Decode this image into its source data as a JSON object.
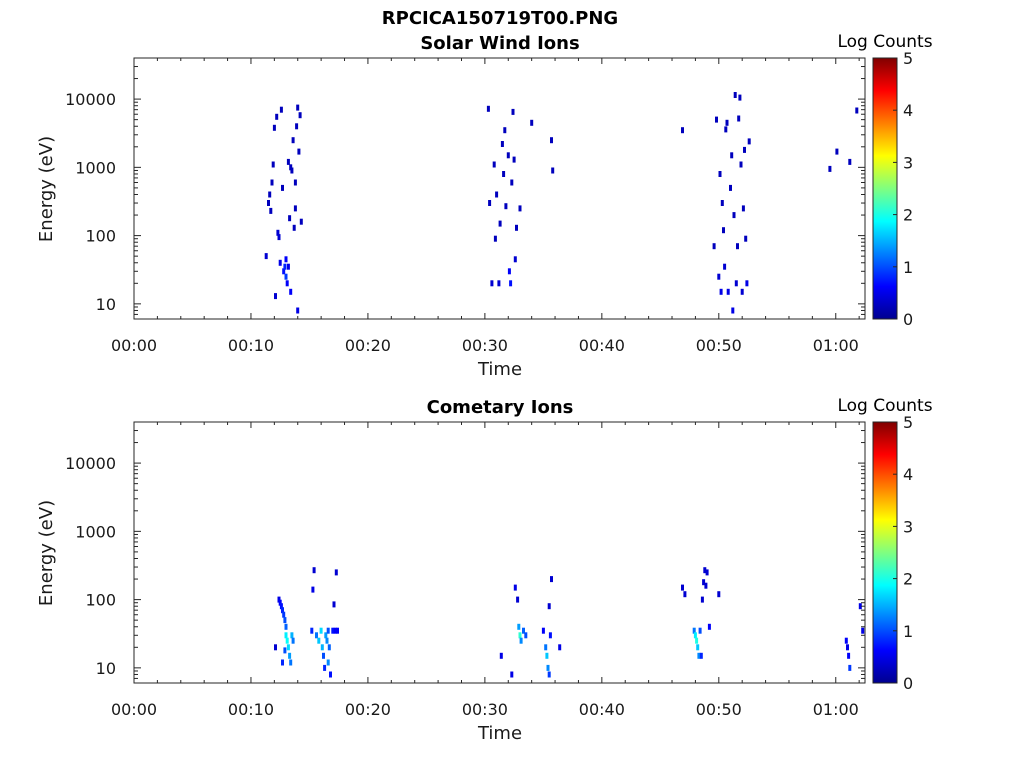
{
  "figure_title": "RPCICA150719T00.PNG",
  "colors": {
    "colormap": "jet",
    "axis": "#262626",
    "background": "#ffffff"
  },
  "chart_data": [
    {
      "type": "heatmap",
      "title": "Solar Wind Ions",
      "xlabel": "Time",
      "ylabel": "Energy (eV)",
      "yscale": "log",
      "ylim": [
        6,
        40000
      ],
      "xlim_minutes": [
        0,
        62.5
      ],
      "x_ticks": [
        "00:00",
        "00:10",
        "00:20",
        "00:30",
        "00:40",
        "00:50",
        "01:00"
      ],
      "y_ticks": [
        "10",
        "100",
        "1000",
        "10000"
      ],
      "colorbar": {
        "label": "Log Counts",
        "min": 0,
        "max": 5,
        "ticks": [
          "0",
          "1",
          "2",
          "3",
          "4",
          "5"
        ]
      },
      "grid": false,
      "cells": [
        [
          11.3,
          50,
          0.4
        ],
        [
          11.5,
          300,
          0.3
        ],
        [
          11.6,
          400,
          0.3
        ],
        [
          11.7,
          230,
          0.3
        ],
        [
          11.8,
          600,
          0.3
        ],
        [
          11.9,
          1100,
          0.3
        ],
        [
          12.0,
          3800,
          0.3
        ],
        [
          12.2,
          5500,
          0.3
        ],
        [
          12.3,
          110,
          0.4
        ],
        [
          12.4,
          95,
          0.4
        ],
        [
          12.5,
          40,
          0.5
        ],
        [
          12.6,
          7000,
          0.3
        ],
        [
          12.7,
          500,
          0.3
        ],
        [
          12.8,
          30,
          0.7
        ],
        [
          12.9,
          35,
          0.8
        ],
        [
          13.0,
          25,
          0.9
        ],
        [
          13.1,
          20,
          0.6
        ],
        [
          13.2,
          1200,
          0.3
        ],
        [
          13.3,
          180,
          0.3
        ],
        [
          13.4,
          15,
          0.6
        ],
        [
          13.5,
          900,
          0.3
        ],
        [
          13.6,
          2500,
          0.3
        ],
        [
          13.7,
          130,
          0.3
        ],
        [
          13.8,
          600,
          0.3
        ],
        [
          13.9,
          4000,
          0.3
        ],
        [
          14.0,
          8,
          0.5
        ],
        [
          14.1,
          1700,
          0.3
        ],
        [
          14.2,
          5800,
          0.3
        ],
        [
          14.3,
          160,
          0.3
        ],
        [
          12.1,
          13,
          0.4
        ],
        [
          13.0,
          45,
          0.6
        ],
        [
          13.2,
          35,
          0.5
        ],
        [
          14.0,
          7500,
          0.3
        ],
        [
          13.4,
          1000,
          0.3
        ],
        [
          13.8,
          250,
          0.3
        ],
        [
          30.3,
          7200,
          0.3
        ],
        [
          30.4,
          300,
          0.3
        ],
        [
          30.6,
          20,
          0.4
        ],
        [
          30.8,
          1100,
          0.3
        ],
        [
          30.9,
          90,
          0.3
        ],
        [
          31.0,
          400,
          0.3
        ],
        [
          31.2,
          20,
          0.4
        ],
        [
          31.3,
          150,
          0.3
        ],
        [
          31.5,
          2200,
          0.3
        ],
        [
          31.6,
          800,
          0.3
        ],
        [
          31.7,
          3500,
          0.3
        ],
        [
          31.8,
          270,
          0.3
        ],
        [
          32.0,
          1500,
          0.3
        ],
        [
          32.1,
          30,
          0.6
        ],
        [
          32.2,
          20,
          0.7
        ],
        [
          32.3,
          600,
          0.3
        ],
        [
          32.4,
          6500,
          0.3
        ],
        [
          32.5,
          1300,
          0.3
        ],
        [
          32.6,
          45,
          0.4
        ],
        [
          32.7,
          130,
          0.3
        ],
        [
          34.0,
          4500,
          0.3
        ],
        [
          35.7,
          2500,
          0.3
        ],
        [
          35.8,
          900,
          0.3
        ],
        [
          33.0,
          250,
          0.3
        ],
        [
          46.9,
          3500,
          0.3
        ],
        [
          49.6,
          70,
          0.3
        ],
        [
          49.8,
          5000,
          0.3
        ],
        [
          50.0,
          25,
          0.4
        ],
        [
          50.1,
          800,
          0.3
        ],
        [
          50.2,
          15,
          0.5
        ],
        [
          50.3,
          300,
          0.3
        ],
        [
          50.4,
          120,
          0.3
        ],
        [
          50.5,
          35,
          0.4
        ],
        [
          50.6,
          3600,
          0.3
        ],
        [
          50.8,
          15,
          0.5
        ],
        [
          51.0,
          500,
          0.3
        ],
        [
          51.1,
          1500,
          0.3
        ],
        [
          51.2,
          8,
          0.5
        ],
        [
          51.3,
          200,
          0.3
        ],
        [
          51.4,
          11500,
          0.3
        ],
        [
          51.5,
          20,
          0.4
        ],
        [
          51.6,
          70,
          0.3
        ],
        [
          51.8,
          10500,
          0.3
        ],
        [
          51.9,
          1100,
          0.3
        ],
        [
          52.0,
          15,
          0.4
        ],
        [
          52.1,
          250,
          0.3
        ],
        [
          52.2,
          1800,
          0.3
        ],
        [
          52.4,
          20,
          0.5
        ],
        [
          52.6,
          2400,
          0.3
        ],
        [
          50.7,
          4500,
          0.3
        ],
        [
          51.7,
          5200,
          0.3
        ],
        [
          52.3,
          90,
          0.3
        ],
        [
          59.5,
          950,
          0.3
        ],
        [
          60.1,
          1700,
          0.3
        ],
        [
          61.2,
          1200,
          0.3
        ],
        [
          61.8,
          6800,
          0.3
        ]
      ]
    },
    {
      "type": "heatmap",
      "title": "Cometary Ions",
      "xlabel": "Time",
      "ylabel": "Energy (eV)",
      "yscale": "log",
      "ylim": [
        6,
        40000
      ],
      "xlim_minutes": [
        0,
        62.5
      ],
      "x_ticks": [
        "00:00",
        "00:10",
        "00:20",
        "00:30",
        "00:40",
        "00:50",
        "01:00"
      ],
      "y_ticks": [
        "10",
        "100",
        "1000",
        "10000"
      ],
      "colorbar": {
        "label": "Log Counts",
        "min": 0,
        "max": 5,
        "ticks": [
          "0",
          "1",
          "2",
          "3",
          "4",
          "5"
        ]
      },
      "grid": false,
      "cells": [
        [
          12.1,
          20,
          0.4
        ],
        [
          12.4,
          100,
          0.5
        ],
        [
          12.5,
          90,
          0.6
        ],
        [
          12.6,
          80,
          0.7
        ],
        [
          12.7,
          70,
          0.8
        ],
        [
          12.8,
          60,
          0.9
        ],
        [
          12.9,
          50,
          1.0
        ],
        [
          13.0,
          40,
          1.1
        ],
        [
          13.0,
          30,
          1.8
        ],
        [
          13.1,
          25,
          1.9
        ],
        [
          13.2,
          20,
          1.7
        ],
        [
          13.3,
          15,
          1.4
        ],
        [
          13.4,
          12,
          1.2
        ],
        [
          12.9,
          18,
          1.0
        ],
        [
          12.7,
          12,
          0.8
        ],
        [
          13.5,
          30,
          1.5
        ],
        [
          13.6,
          25,
          1.2
        ],
        [
          15.2,
          35,
          0.8
        ],
        [
          15.3,
          140,
          0.5
        ],
        [
          15.4,
          270,
          0.4
        ],
        [
          15.6,
          30,
          1.2
        ],
        [
          15.8,
          25,
          1.6
        ],
        [
          16.0,
          35,
          1.7
        ],
        [
          16.1,
          20,
          1.5
        ],
        [
          16.2,
          15,
          1.0
        ],
        [
          16.3,
          10,
          0.8
        ],
        [
          16.4,
          30,
          1.4
        ],
        [
          16.5,
          25,
          1.3
        ],
        [
          16.6,
          35,
          1.0
        ],
        [
          16.7,
          20,
          1.1
        ],
        [
          16.8,
          8,
          0.7
        ],
        [
          17.0,
          35,
          0.7
        ],
        [
          17.2,
          35,
          0.6
        ],
        [
          17.3,
          250,
          0.4
        ],
        [
          17.4,
          35,
          0.6
        ],
        [
          17.1,
          85,
          0.4
        ],
        [
          16.6,
          12,
          1.3
        ],
        [
          31.4,
          15,
          0.5
        ],
        [
          32.3,
          8,
          0.5
        ],
        [
          32.6,
          150,
          0.5
        ],
        [
          32.8,
          100,
          0.4
        ],
        [
          32.9,
          40,
          1.4
        ],
        [
          33.0,
          30,
          2.1
        ],
        [
          33.1,
          25,
          1.3
        ],
        [
          33.3,
          35,
          1.1
        ],
        [
          33.5,
          30,
          1.0
        ],
        [
          35.0,
          35,
          0.6
        ],
        [
          35.2,
          20,
          1.2
        ],
        [
          35.3,
          15,
          1.6
        ],
        [
          35.4,
          10,
          1.3
        ],
        [
          35.5,
          8,
          0.9
        ],
        [
          35.6,
          30,
          0.7
        ],
        [
          35.7,
          200,
          0.4
        ],
        [
          35.5,
          80,
          0.4
        ],
        [
          36.4,
          20,
          0.5
        ],
        [
          46.9,
          150,
          0.4
        ],
        [
          47.1,
          120,
          0.4
        ],
        [
          47.9,
          35,
          1.2
        ],
        [
          48.0,
          30,
          1.8
        ],
        [
          48.1,
          25,
          2.0
        ],
        [
          48.2,
          20,
          1.6
        ],
        [
          48.3,
          15,
          1.3
        ],
        [
          48.4,
          35,
          1.0
        ],
        [
          48.5,
          15,
          0.8
        ],
        [
          48.6,
          100,
          0.4
        ],
        [
          48.7,
          180,
          0.4
        ],
        [
          48.8,
          270,
          0.4
        ],
        [
          49.0,
          250,
          0.4
        ],
        [
          48.9,
          160,
          0.4
        ],
        [
          49.2,
          40,
          0.6
        ],
        [
          50.0,
          120,
          0.4
        ],
        [
          60.9,
          25,
          0.6
        ],
        [
          61.0,
          20,
          0.5
        ],
        [
          61.1,
          15,
          0.6
        ],
        [
          61.2,
          10,
          0.9
        ],
        [
          62.1,
          80,
          0.5
        ],
        [
          62.3,
          35,
          0.5
        ]
      ]
    }
  ]
}
